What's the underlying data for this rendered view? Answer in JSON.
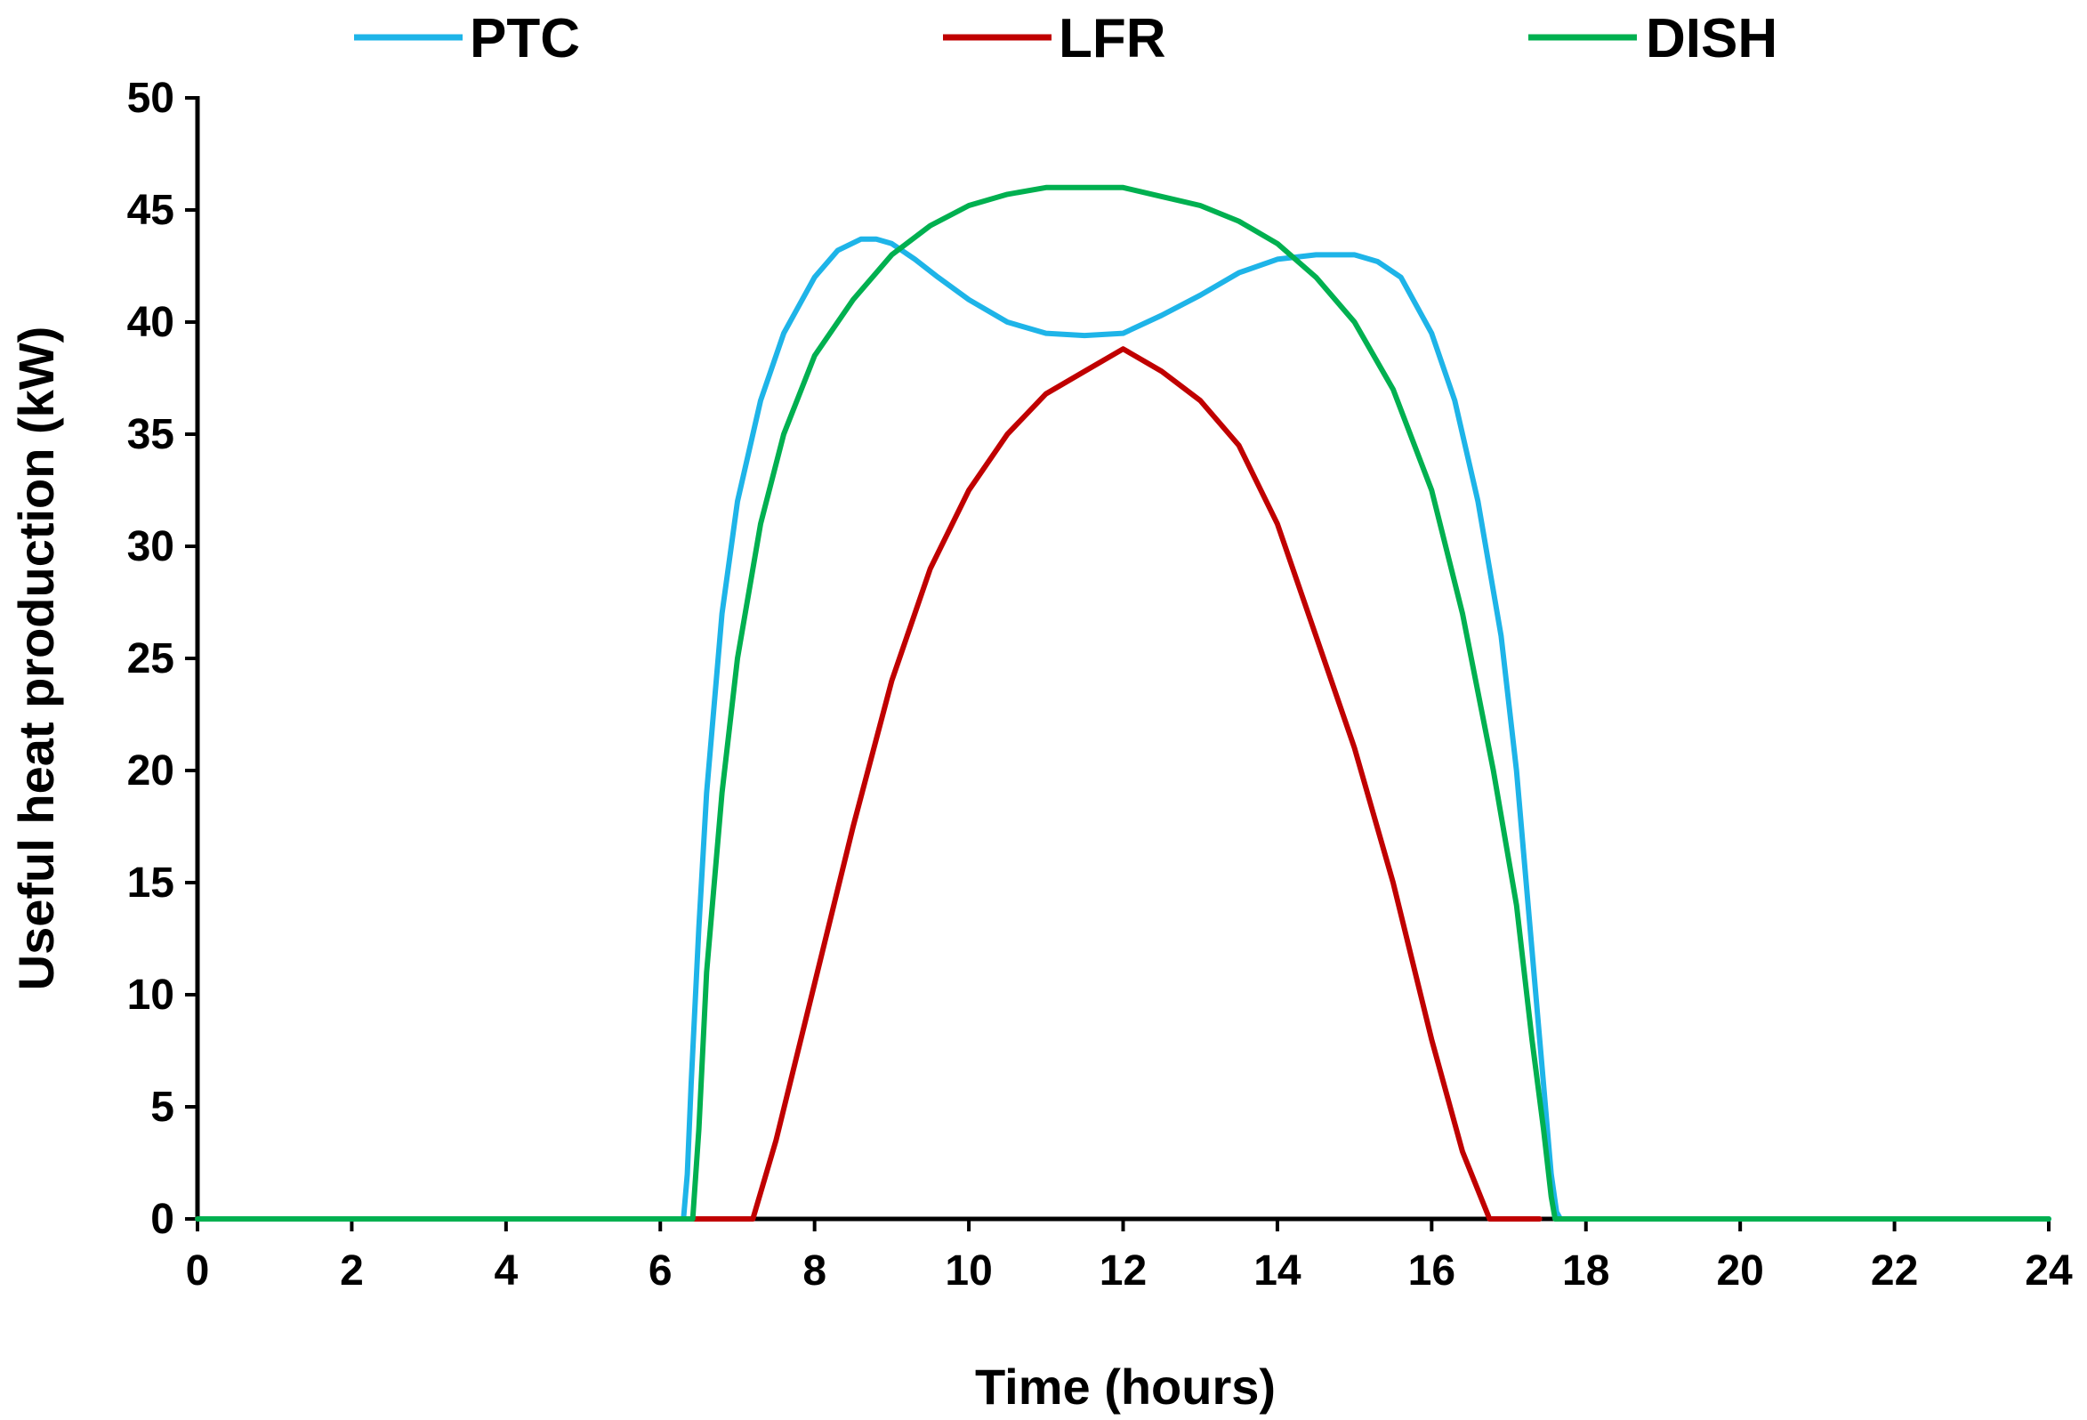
{
  "chart_data": {
    "type": "line",
    "title": "",
    "xlabel": "Time (hours)",
    "ylabel": "Useful heat production (kW)",
    "xlim": [
      0,
      24
    ],
    "ylim": [
      0,
      50
    ],
    "xticks": [
      0,
      2,
      4,
      6,
      8,
      10,
      12,
      14,
      16,
      18,
      20,
      22,
      24
    ],
    "yticks": [
      0,
      5,
      10,
      15,
      20,
      25,
      30,
      35,
      40,
      45,
      50
    ],
    "grid": false,
    "legend_position": "top",
    "series": [
      {
        "name": "PTC",
        "color": "#1EB4E8",
        "x": [
          0,
          6.3,
          6.35,
          6.4,
          6.5,
          6.6,
          6.8,
          7.0,
          7.3,
          7.6,
          8.0,
          8.3,
          8.6,
          8.8,
          9.0,
          9.3,
          9.6,
          10.0,
          10.5,
          11.0,
          11.5,
          12.0,
          12.5,
          13.0,
          13.5,
          14.0,
          14.5,
          15.0,
          15.3,
          15.6,
          16.0,
          16.3,
          16.6,
          16.9,
          17.1,
          17.3,
          17.45,
          17.55,
          17.62,
          17.67,
          24
        ],
        "y": [
          0,
          0,
          2,
          6,
          13,
          19,
          27,
          32,
          36.5,
          39.5,
          42,
          43.2,
          43.7,
          43.7,
          43.5,
          42.8,
          42,
          41,
          40,
          39.5,
          39.4,
          39.5,
          40.3,
          41.2,
          42.2,
          42.8,
          43,
          43,
          42.7,
          42,
          39.5,
          36.5,
          32,
          26,
          20,
          12,
          6,
          2,
          0.3,
          0,
          0
        ]
      },
      {
        "name": "LFR",
        "color": "#C00000",
        "x": [
          0,
          6.4,
          7.2,
          7.5,
          8.0,
          8.5,
          9.0,
          9.5,
          10.0,
          10.5,
          11.0,
          11.5,
          12.0,
          12.5,
          13.0,
          13.5,
          14.0,
          14.5,
          15.0,
          15.5,
          16.0,
          16.4,
          16.75,
          17.4
        ],
        "y": [
          0,
          0,
          0,
          3.5,
          10.5,
          17.5,
          24,
          29,
          32.5,
          35,
          36.8,
          37.8,
          38.8,
          37.8,
          36.5,
          34.5,
          31,
          26,
          21,
          15,
          8,
          3,
          0,
          0
        ]
      },
      {
        "name": "DISH",
        "color": "#00B050",
        "x": [
          0,
          6.42,
          6.5,
          6.6,
          6.8,
          7.0,
          7.3,
          7.6,
          8.0,
          8.5,
          9.0,
          9.5,
          10.0,
          10.5,
          11.0,
          11.5,
          12.0,
          12.5,
          13.0,
          13.5,
          14.0,
          14.5,
          15.0,
          15.5,
          16.0,
          16.4,
          16.8,
          17.1,
          17.3,
          17.45,
          17.55,
          17.6,
          24
        ],
        "y": [
          0,
          0,
          4,
          11,
          19,
          25,
          31,
          35,
          38.5,
          41,
          43,
          44.3,
          45.2,
          45.7,
          46,
          46,
          46,
          45.6,
          45.2,
          44.5,
          43.5,
          42,
          40,
          37,
          32.5,
          27,
          20,
          14,
          8,
          4,
          1,
          0,
          0
        ]
      }
    ]
  }
}
